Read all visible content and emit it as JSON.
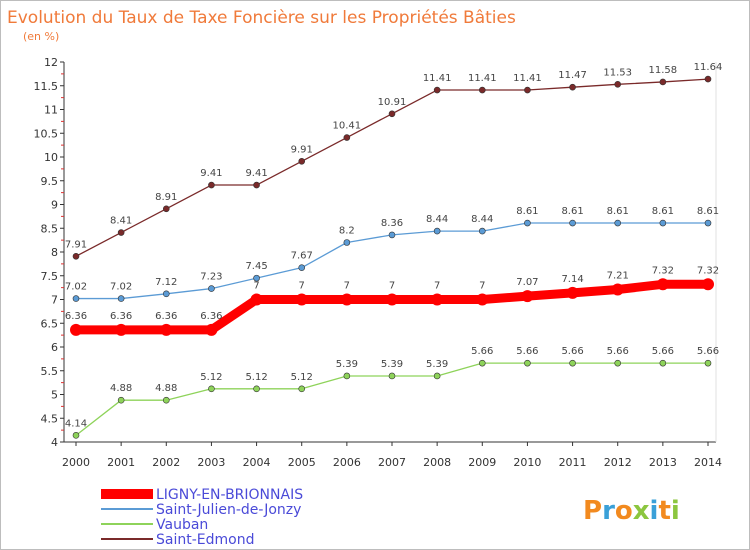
{
  "title": "Evolution du Taux de Taxe Foncière sur les Propriétés Bâties",
  "subtitle": "(en %)",
  "logo": {
    "letters": [
      "P",
      "r",
      "o",
      "x",
      "i",
      "t",
      "i"
    ],
    "colors": [
      "#f28a1f",
      "#3aa0d8",
      "#f28a1f",
      "#8cc63f",
      "#3aa0d8",
      "#f28a1f",
      "#8cc63f"
    ]
  },
  "chart_data": {
    "type": "line",
    "x": [
      "2000",
      "2001",
      "2002",
      "2003",
      "2004",
      "2005",
      "2006",
      "2007",
      "2008",
      "2009",
      "2010",
      "2011",
      "2012",
      "2013",
      "2014"
    ],
    "ylim": [
      4,
      12
    ],
    "yticks": [
      "4",
      "4.5",
      "5",
      "5.5",
      "6",
      "6.5",
      "7",
      "7.5",
      "8",
      "8.5",
      "9",
      "9.5",
      "10",
      "10.5",
      "11",
      "11.5",
      "12"
    ],
    "grid": false,
    "legend_position": "bottom-left",
    "series": [
      {
        "name": "Saint-Edmond",
        "color": "#7a2a2a",
        "values": [
          7.91,
          8.41,
          8.91,
          9.41,
          9.41,
          9.91,
          10.41,
          10.91,
          11.41,
          11.41,
          11.41,
          11.47,
          11.53,
          11.58,
          11.64
        ],
        "labels": [
          "7.91",
          "8.41",
          "8.91",
          "9.41",
          "9.41",
          "9.91",
          "10.41",
          "10.91",
          "11.41",
          "11.41",
          "11.41",
          "11.47",
          "11.53",
          "11.58",
          "11.64"
        ]
      },
      {
        "name": "Saint-Julien-de-Jonzy",
        "color": "#5b9bd5",
        "values": [
          7.02,
          7.02,
          7.12,
          7.23,
          7.45,
          7.67,
          8.2,
          8.36,
          8.44,
          8.44,
          8.61,
          8.61,
          8.61,
          8.61,
          8.61
        ],
        "labels": [
          "7.02",
          "7.02",
          "7.12",
          "7.23",
          "7.45",
          "7.67",
          "8.2",
          "8.36",
          "8.44",
          "8.44",
          "8.61",
          "8.61",
          "8.61",
          "8.61",
          "8.61"
        ]
      },
      {
        "name": "LIGNY-EN-BRIONNAIS",
        "color": "#ff0000",
        "values": [
          6.36,
          6.36,
          6.36,
          6.36,
          7,
          7,
          7,
          7,
          7,
          7,
          7.07,
          7.14,
          7.21,
          7.32,
          7.32
        ],
        "labels": [
          "6.36",
          "6.36",
          "6.36",
          "6.36",
          "7",
          "7",
          "7",
          "7",
          "7",
          "7",
          "7.07",
          "7.14",
          "7.21",
          "7.32",
          "7.32"
        ]
      },
      {
        "name": "Vauban",
        "color": "#8ed35a",
        "values": [
          4.14,
          4.88,
          4.88,
          5.12,
          5.12,
          5.12,
          5.39,
          5.39,
          5.39,
          5.66,
          5.66,
          5.66,
          5.66,
          5.66,
          5.66
        ],
        "labels": [
          "4.14",
          "4.88",
          "4.88",
          "5.12",
          "5.12",
          "5.12",
          "5.39",
          "5.39",
          "5.39",
          "5.66",
          "5.66",
          "5.66",
          "5.66",
          "5.66",
          "5.66"
        ]
      }
    ],
    "legend": [
      {
        "name": "LIGNY-EN-BRIONNAIS",
        "color": "#ff0000"
      },
      {
        "name": "Saint-Julien-de-Jonzy",
        "color": "#5b9bd5"
      },
      {
        "name": "Vauban",
        "color": "#8ed35a"
      },
      {
        "name": "Saint-Edmond",
        "color": "#7a2a2a"
      }
    ]
  }
}
